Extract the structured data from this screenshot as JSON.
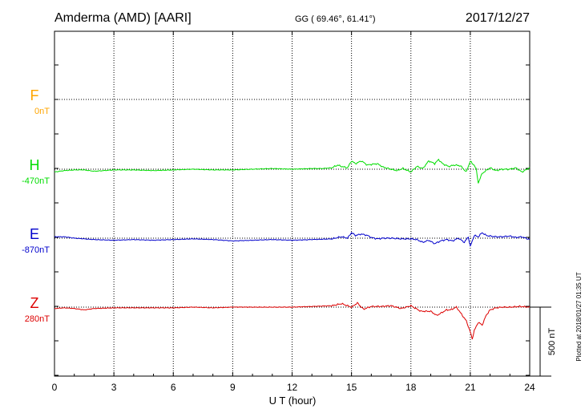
{
  "header": {
    "station": "Amderma (AMD)  [AARI]",
    "coords": "GG ( 69.46°,  61.41°)",
    "date": "2017/12/27"
  },
  "footer": {
    "plotted": "Plotted at 2018/01/27 01:35 UT",
    "scale_label": "500 nT"
  },
  "colors": {
    "F": "#ffa500",
    "H": "#00dd00",
    "E": "#0000cc",
    "Z": "#dd0000",
    "grid": "#000000"
  },
  "chart_data": {
    "type": "line",
    "title": "",
    "xlabel": "U T (hour)",
    "xlim": [
      0,
      24
    ],
    "xticks": [
      "0",
      "3",
      "6",
      "9",
      "12",
      "15",
      "18",
      "21",
      "24"
    ],
    "grid": true,
    "series": [
      {
        "name": "F",
        "baseline_label": "0nT",
        "x": [],
        "y": []
      },
      {
        "name": "H",
        "baseline_label": "-470nT",
        "x": [
          0,
          0.5,
          1,
          1.5,
          2,
          3,
          4,
          5,
          6,
          7,
          8,
          9,
          10,
          11,
          12,
          13,
          13.5,
          14,
          14.3,
          14.5,
          14.8,
          15,
          15.2,
          15.5,
          15.8,
          16,
          16.3,
          16.6,
          17,
          17.3,
          17.6,
          18,
          18.3,
          18.6,
          18.9,
          19.2,
          19.4,
          19.6,
          19.9,
          20.2,
          20.5,
          20.8,
          21,
          21.1,
          21.2,
          21.3,
          21.4,
          21.6,
          21.8,
          22,
          22.3,
          22.6,
          23,
          23.3,
          23.6,
          24
        ],
        "y": [
          -20,
          -10,
          -5,
          -5,
          -15,
          -5,
          -5,
          -10,
          -5,
          0,
          -5,
          -5,
          0,
          5,
          0,
          5,
          5,
          10,
          30,
          20,
          10,
          60,
          40,
          60,
          30,
          35,
          40,
          15,
          0,
          -10,
          5,
          -20,
          20,
          5,
          60,
          40,
          70,
          40,
          20,
          30,
          25,
          -20,
          60,
          40,
          30,
          0,
          -100,
          -30,
          -10,
          10,
          -10,
          0,
          0,
          10,
          -20,
          10
        ]
      },
      {
        "name": "E",
        "baseline_label": "-870nT",
        "x": [
          0,
          0.5,
          1,
          2,
          3,
          4,
          5,
          6,
          7,
          8,
          9,
          10,
          11,
          12,
          13,
          14,
          14.5,
          14.8,
          15,
          15.2,
          15.5,
          15.8,
          16,
          16.3,
          16.6,
          17,
          17.5,
          18,
          18.3,
          18.6,
          18.9,
          19.2,
          19.5,
          19.8,
          20.1,
          20.4,
          20.7,
          20.9,
          21,
          21.1,
          21.2,
          21.4,
          21.6,
          21.8,
          22,
          22.3,
          22.6,
          23,
          23.3,
          23.6,
          24
        ],
        "y": [
          10,
          10,
          0,
          -10,
          -15,
          -10,
          -15,
          -10,
          -5,
          -10,
          -20,
          -15,
          -10,
          -15,
          -10,
          -5,
          10,
          0,
          40,
          20,
          30,
          20,
          5,
          -5,
          0,
          0,
          -5,
          -5,
          -10,
          -30,
          -15,
          -40,
          -20,
          -10,
          -20,
          0,
          -30,
          10,
          -60,
          -20,
          20,
          10,
          40,
          20,
          15,
          10,
          10,
          15,
          5,
          10,
          -10
        ]
      },
      {
        "name": "Z",
        "baseline_label": "280nT",
        "x": [
          0,
          0.5,
          1,
          1.5,
          2,
          3,
          4,
          5,
          6,
          7,
          8,
          9,
          10,
          11,
          12,
          13,
          14,
          14.5,
          15,
          15.3,
          15.6,
          16,
          16.5,
          17,
          17.5,
          18,
          18.5,
          19,
          19.3,
          19.5,
          19.8,
          20,
          20.3,
          20.6,
          20.8,
          21,
          21.1,
          21.2,
          21.4,
          21.6,
          21.8,
          22,
          22.3,
          22.6,
          23,
          23.5,
          24
        ],
        "y": [
          -10,
          -5,
          -10,
          -20,
          -10,
          -5,
          -5,
          -5,
          -5,
          0,
          -5,
          0,
          0,
          0,
          0,
          5,
          10,
          25,
          0,
          30,
          -15,
          5,
          5,
          10,
          -10,
          10,
          -30,
          -30,
          -60,
          -45,
          -20,
          -20,
          0,
          -60,
          -100,
          -180,
          -230,
          -170,
          -110,
          -130,
          -60,
          -20,
          -5,
          0,
          0,
          5,
          0
        ]
      }
    ]
  }
}
